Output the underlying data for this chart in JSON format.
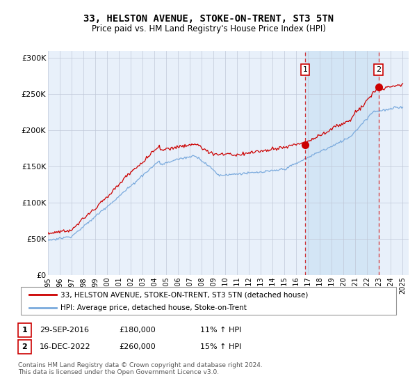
{
  "title": "33, HELSTON AVENUE, STOKE-ON-TRENT, ST3 5TN",
  "subtitle": "Price paid vs. HM Land Registry's House Price Index (HPI)",
  "ylabel_ticks": [
    "£0",
    "£50K",
    "£100K",
    "£150K",
    "£200K",
    "£250K",
    "£300K"
  ],
  "ytick_values": [
    0,
    50000,
    100000,
    150000,
    200000,
    250000,
    300000
  ],
  "ylim": [
    0,
    310000
  ],
  "xlim_start": 1995.0,
  "xlim_end": 2025.5,
  "sale1_date": 2016.75,
  "sale1_price": 180000,
  "sale2_date": 2022.96,
  "sale2_price": 260000,
  "red_line_color": "#cc0000",
  "blue_line_color": "#7aaadd",
  "shade_color": "#d0e4f5",
  "background_color": "#ffffff",
  "plot_bg_color": "#e8f0fa",
  "grid_color": "#c0c8d8",
  "legend_line1": "33, HELSTON AVENUE, STOKE-ON-TRENT, ST3 5TN (detached house)",
  "legend_line2": "HPI: Average price, detached house, Stoke-on-Trent",
  "annotation1_date": "29-SEP-2016",
  "annotation1_price": "£180,000",
  "annotation1_hpi": "11% ↑ HPI",
  "annotation2_date": "16-DEC-2022",
  "annotation2_price": "£260,000",
  "annotation2_hpi": "15% ↑ HPI",
  "footer": "Contains HM Land Registry data © Crown copyright and database right 2024.\nThis data is licensed under the Open Government Licence v3.0."
}
